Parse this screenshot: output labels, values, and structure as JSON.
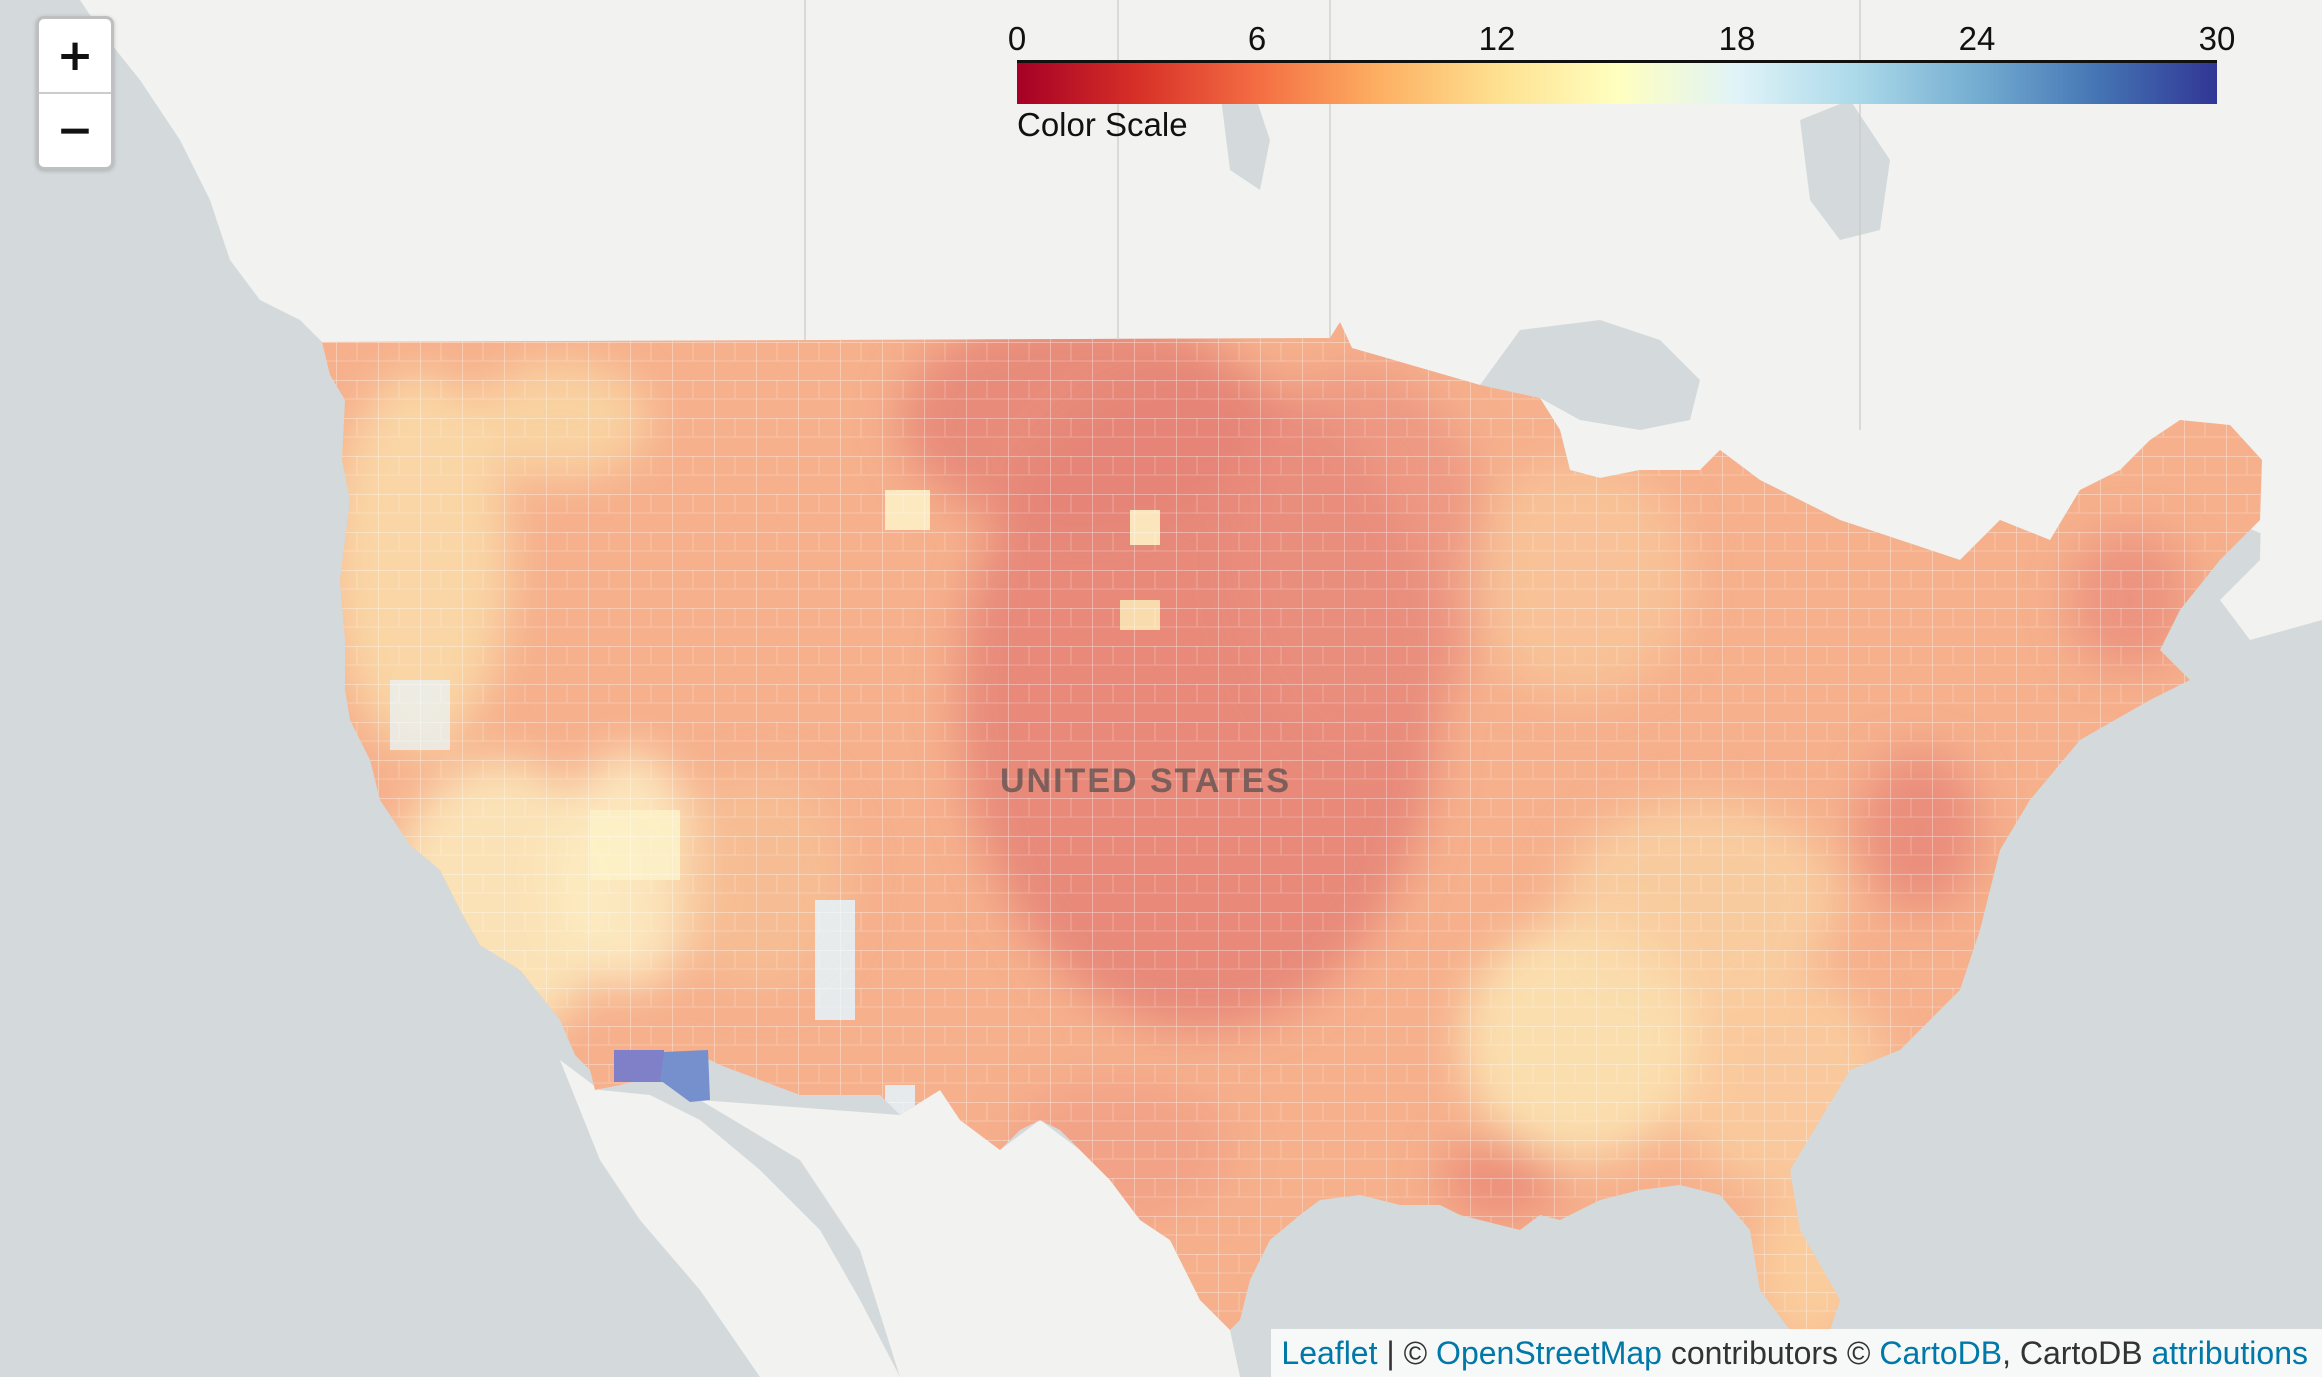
{
  "map": {
    "country_label": "UNITED STATES",
    "zoom_in_label": "+",
    "zoom_out_label": "−",
    "colors": {
      "water": "#d4dadc",
      "land": "#f2f2f0",
      "us_base": "#f6b08c",
      "high_dark": "#e58377",
      "mid": "#f9c89b",
      "pale": "#fbeec0",
      "light_blue": "#e4f1f6",
      "blue": "#7590cc",
      "purple": "#8080c8"
    }
  },
  "legend": {
    "title": "Color Scale",
    "ticks": [
      "0",
      "6",
      "12",
      "18",
      "24",
      "30"
    ],
    "min": 0,
    "max": 30,
    "colors": [
      "#a50026",
      "#d73027",
      "#f46d43",
      "#fdae61",
      "#fee090",
      "#ffffbf",
      "#e0f3f8",
      "#abd9e9",
      "#74add1",
      "#4575b4",
      "#313695"
    ]
  },
  "attribution": {
    "leaflet": "Leaflet",
    "sep1": " | © ",
    "osm": "OpenStreetMap",
    "mid": " contributors © ",
    "cartodb": "CartoDB",
    "sep2": ", CartoDB ",
    "attributions": "attributions"
  }
}
